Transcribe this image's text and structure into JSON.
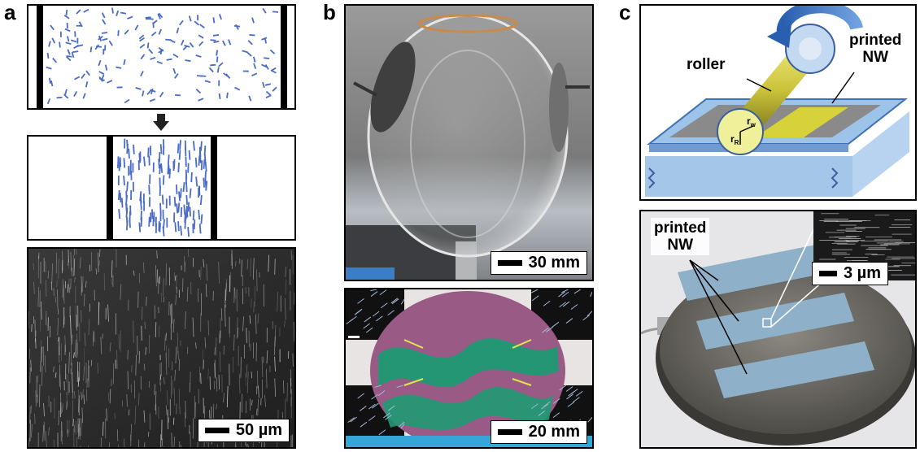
{
  "panels": {
    "a": {
      "letter": "a",
      "scalebar": "50 µm"
    },
    "b": {
      "letter": "b",
      "scalebar_top": "30 mm",
      "scalebar_bottom": "20 mm"
    },
    "c": {
      "letter": "c",
      "roller_label": "roller",
      "printed_nw_top_line1": "printed",
      "printed_nw_top_line2": "NW",
      "printed_nw_photo_line1": "printed",
      "printed_nw_photo_line2": "NW",
      "scalebar": "3 µm",
      "r_w": "r",
      "r_w_sub": "w",
      "r_r": "r",
      "r_r_sub": "R"
    }
  },
  "colors": {
    "nanowire_blue": "#4a6cc8",
    "substrate_blue": "#9ec3e8",
    "roller_yellow": "#d8d23a",
    "arrow_blue": "#2f6cc0",
    "wafer_gray": "#6f6c66",
    "print_strip": "#8fb0c9",
    "film_green": "#1f9a73",
    "film_magenta": "#9a5a86"
  }
}
